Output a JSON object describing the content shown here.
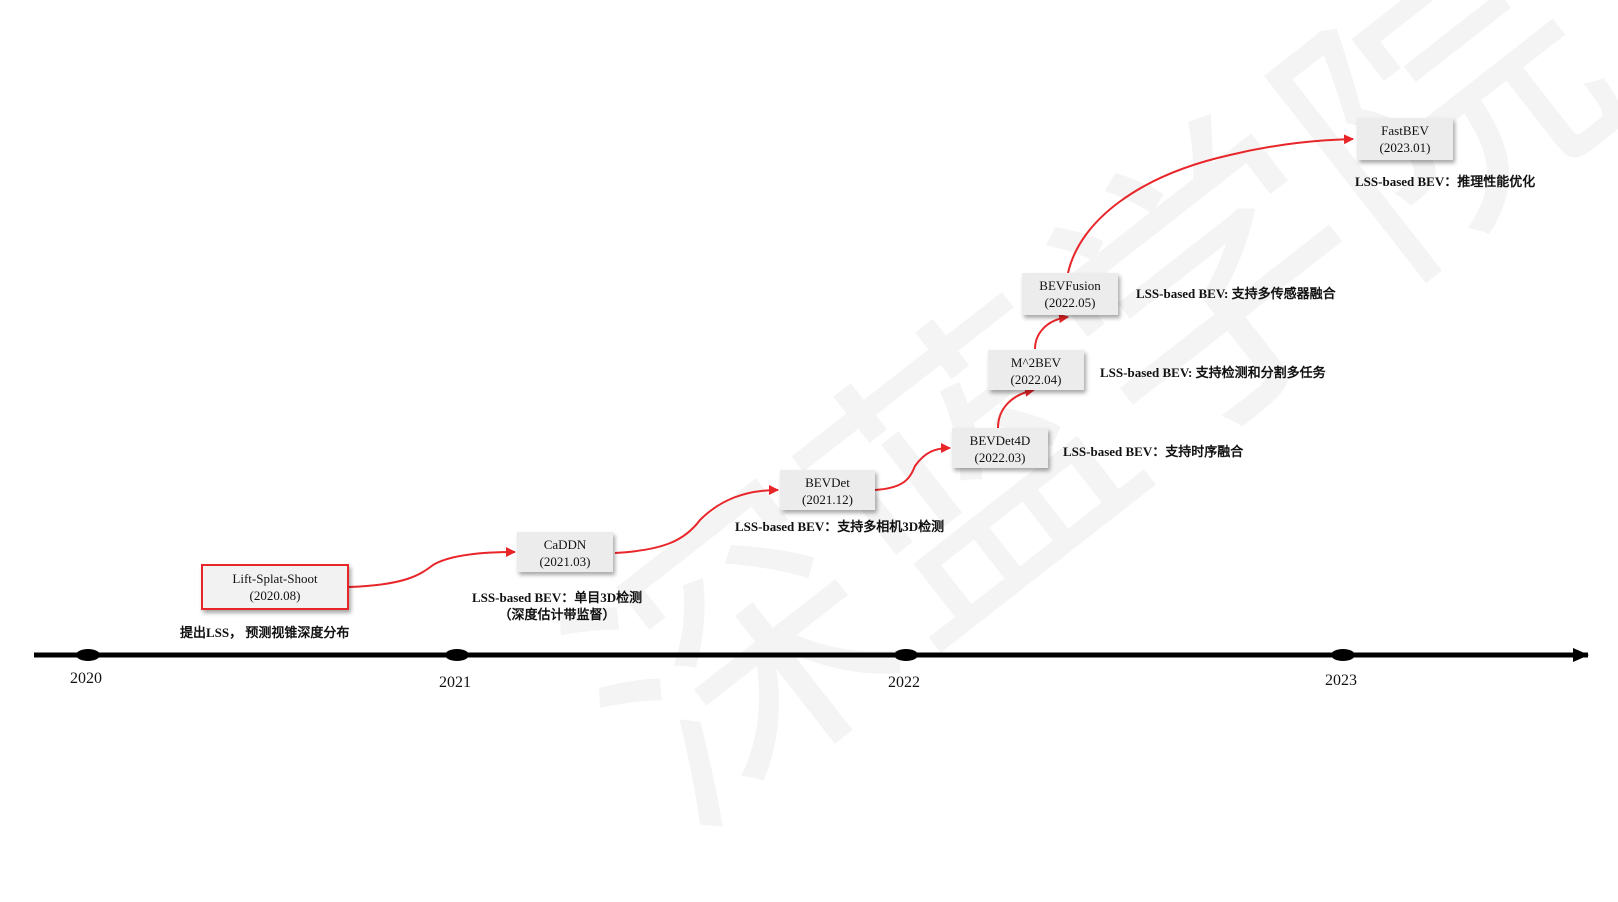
{
  "watermark": "深蓝学院",
  "timeline": {
    "years": [
      "2020",
      "2021",
      "2022",
      "2023"
    ]
  },
  "nodes": [
    {
      "name": "Lift-Splat-Shoot",
      "date": "(2020.08)",
      "note": [
        "提出LSS， 预测视锥深度分布"
      ]
    },
    {
      "name": "CaDDN",
      "date": "(2021.03)",
      "note": [
        "LSS-based BEV：单目3D检测",
        "（深度估计带监督）"
      ]
    },
    {
      "name": "BEVDet",
      "date": "(2021.12)",
      "note": [
        "LSS-based BEV：支持多相机3D检测"
      ]
    },
    {
      "name": "BEVDet4D",
      "date": "(2022.03)",
      "note": [
        "LSS-based BEV：支持时序融合"
      ]
    },
    {
      "name": "M^2BEV",
      "date": "(2022.04)",
      "note": [
        "LSS-based BEV: 支持检测和分割多任务"
      ]
    },
    {
      "name": "BEVFusion",
      "date": "(2022.05)",
      "note": [
        "LSS-based BEV: 支持多传感器融合"
      ]
    },
    {
      "name": "FastBEV",
      "date": "(2023.01)",
      "note": [
        "LSS-based BEV：推理性能优化"
      ]
    }
  ],
  "colors": {
    "arrow": "#e8262a",
    "axis": "#000000",
    "node_fill": "#ececec",
    "highlight_border": "#e8262a"
  }
}
